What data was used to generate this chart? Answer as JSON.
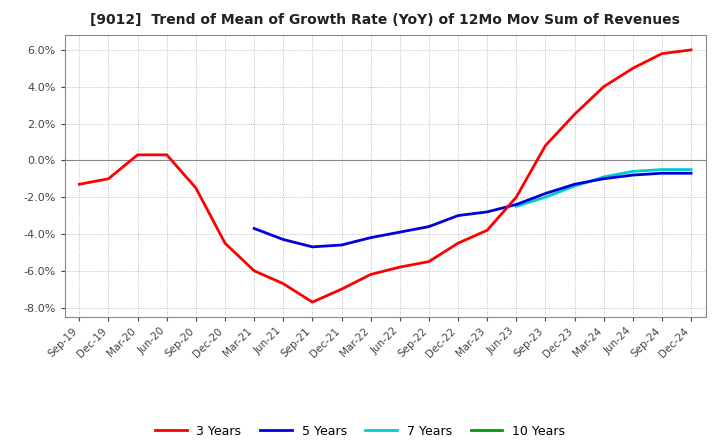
{
  "title": "[9012]  Trend of Mean of Growth Rate (YoY) of 12Mo Mov Sum of Revenues",
  "ylim": [
    -0.085,
    0.068
  ],
  "yticks": [
    -0.08,
    -0.06,
    -0.04,
    -0.02,
    0.0,
    0.02,
    0.04,
    0.06
  ],
  "background_color": "#ffffff",
  "grid_color": "#aaaaaa",
  "legend": [
    "3 Years",
    "5 Years",
    "7 Years",
    "10 Years"
  ],
  "legend_colors": [
    "#ff0000",
    "#0000dd",
    "#00cccc",
    "#009900"
  ],
  "x_labels": [
    "Sep-19",
    "Dec-19",
    "Mar-20",
    "Jun-20",
    "Sep-20",
    "Dec-20",
    "Mar-21",
    "Jun-21",
    "Sep-21",
    "Dec-21",
    "Mar-22",
    "Jun-22",
    "Sep-22",
    "Dec-22",
    "Mar-23",
    "Jun-23",
    "Sep-23",
    "Dec-23",
    "Mar-24",
    "Jun-24",
    "Sep-24",
    "Dec-24"
  ],
  "series_3y": [
    -0.013,
    -0.01,
    0.003,
    0.003,
    -0.015,
    -0.045,
    -0.06,
    -0.067,
    -0.077,
    -0.07,
    -0.062,
    -0.058,
    -0.055,
    -0.045,
    -0.038,
    -0.02,
    0.008,
    0.025,
    0.04,
    0.05,
    0.058,
    0.06
  ],
  "series_5y": [
    null,
    null,
    null,
    null,
    null,
    null,
    -0.037,
    -0.043,
    -0.047,
    -0.046,
    -0.042,
    -0.039,
    -0.036,
    -0.03,
    -0.028,
    -0.024,
    -0.018,
    -0.013,
    -0.01,
    -0.008,
    -0.007,
    -0.007
  ],
  "series_7y": [
    null,
    null,
    null,
    null,
    null,
    null,
    null,
    null,
    null,
    null,
    null,
    null,
    null,
    null,
    null,
    -0.025,
    -0.02,
    -0.014,
    -0.009,
    -0.006,
    -0.005,
    -0.005
  ],
  "series_10y": [
    null,
    null,
    null,
    null,
    null,
    null,
    null,
    null,
    null,
    null,
    null,
    null,
    null,
    null,
    null,
    null,
    null,
    null,
    null,
    null,
    null,
    null
  ]
}
